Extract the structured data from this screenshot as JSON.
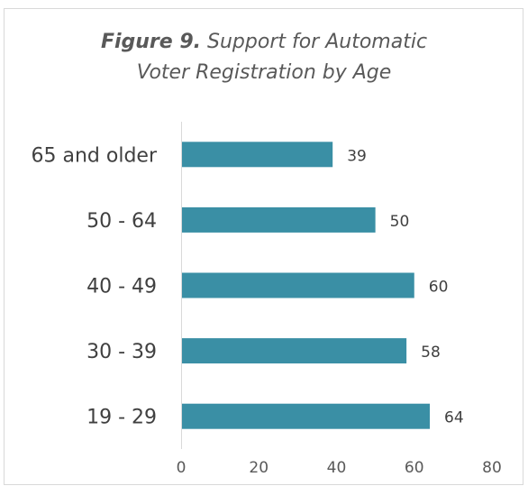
{
  "chart_data": {
    "type": "bar",
    "orientation": "horizontal",
    "title_label": "Figure 9.",
    "title": "Support for Automatic Voter Registration by Age",
    "title_lines": [
      "Support for Automatic",
      "Voter Registration by Age"
    ],
    "categories": [
      "65 and older",
      "50 - 64",
      "40 - 49",
      "30 - 39",
      "19 - 29"
    ],
    "values": [
      39,
      50,
      60,
      58,
      64
    ],
    "xlim": [
      0,
      80
    ],
    "xticks": [
      0,
      20,
      40,
      60,
      80
    ],
    "xlabel": "",
    "ylabel": "",
    "grid": false,
    "legend": "none",
    "bar_color": "#3a8fa5",
    "data_labels": true
  }
}
